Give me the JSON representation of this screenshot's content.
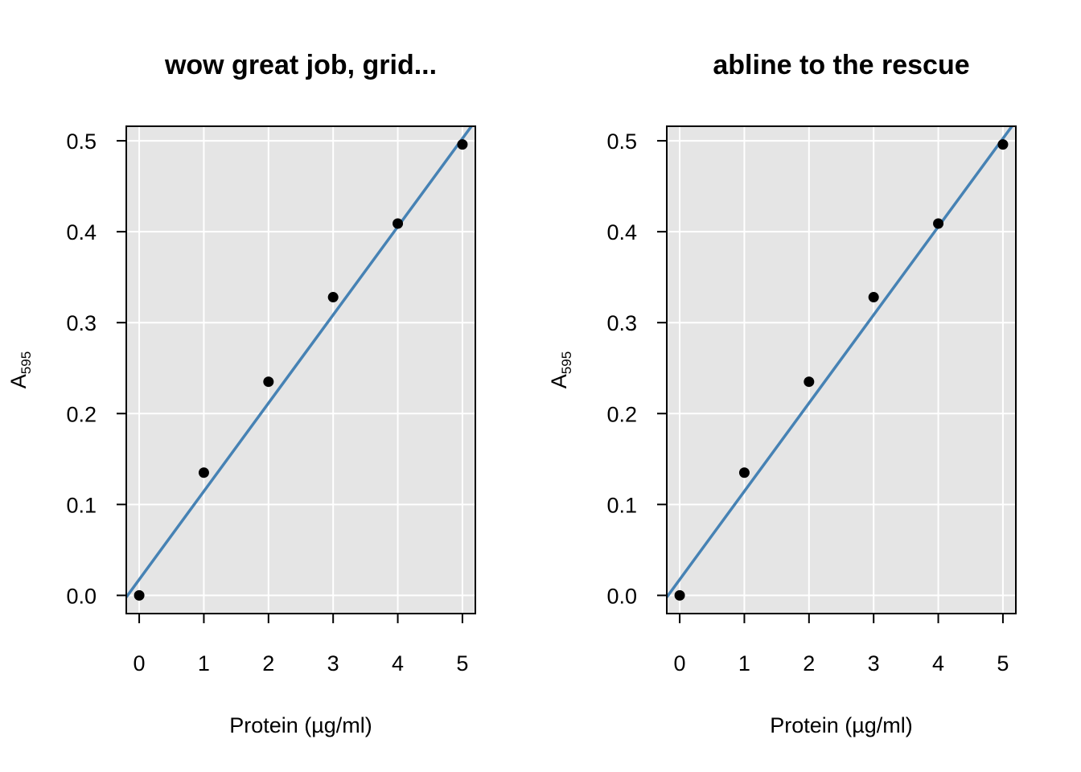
{
  "colors": {
    "panel_background": "#e5e5e5",
    "grid": "#ffffff",
    "fit_line": "#4682b4",
    "points": "#000000",
    "frame": "#000000"
  },
  "chart_data": [
    {
      "type": "scatter",
      "title": "wow great job, grid...",
      "xlabel": "Protein (µg/ml)",
      "ylabel": {
        "main": "A",
        "subscript": "595"
      },
      "x": [
        0,
        1,
        2,
        3,
        4,
        5
      ],
      "y": [
        0.0,
        0.135,
        0.235,
        0.328,
        0.409,
        0.496
      ],
      "xticks": [
        0,
        1,
        2,
        3,
        4,
        5
      ],
      "yticks": [
        0.0,
        0.1,
        0.2,
        0.3,
        0.4,
        0.5
      ],
      "ytick_labels": [
        "0.0",
        "0.1",
        "0.2",
        "0.3",
        "0.4",
        "0.5"
      ],
      "xlim": [
        -0.2,
        5.2
      ],
      "ylim": [
        -0.02,
        0.516
      ],
      "fit_line": {
        "intercept": 0.0175,
        "slope": 0.097
      },
      "grid": true,
      "legend": "none"
    },
    {
      "type": "scatter",
      "title": "abline to the rescue",
      "xlabel": "Protein (µg/ml)",
      "ylabel": {
        "main": "A",
        "subscript": "595"
      },
      "x": [
        0,
        1,
        2,
        3,
        4,
        5
      ],
      "y": [
        0.0,
        0.135,
        0.235,
        0.328,
        0.409,
        0.496
      ],
      "xticks": [
        0,
        1,
        2,
        3,
        4,
        5
      ],
      "yticks": [
        0.0,
        0.1,
        0.2,
        0.3,
        0.4,
        0.5
      ],
      "ytick_labels": [
        "0.0",
        "0.1",
        "0.2",
        "0.3",
        "0.4",
        "0.5"
      ],
      "xlim": [
        -0.2,
        5.2
      ],
      "ylim": [
        -0.02,
        0.516
      ],
      "fit_line": {
        "intercept": 0.0175,
        "slope": 0.097
      },
      "grid": true,
      "legend": "none"
    }
  ]
}
